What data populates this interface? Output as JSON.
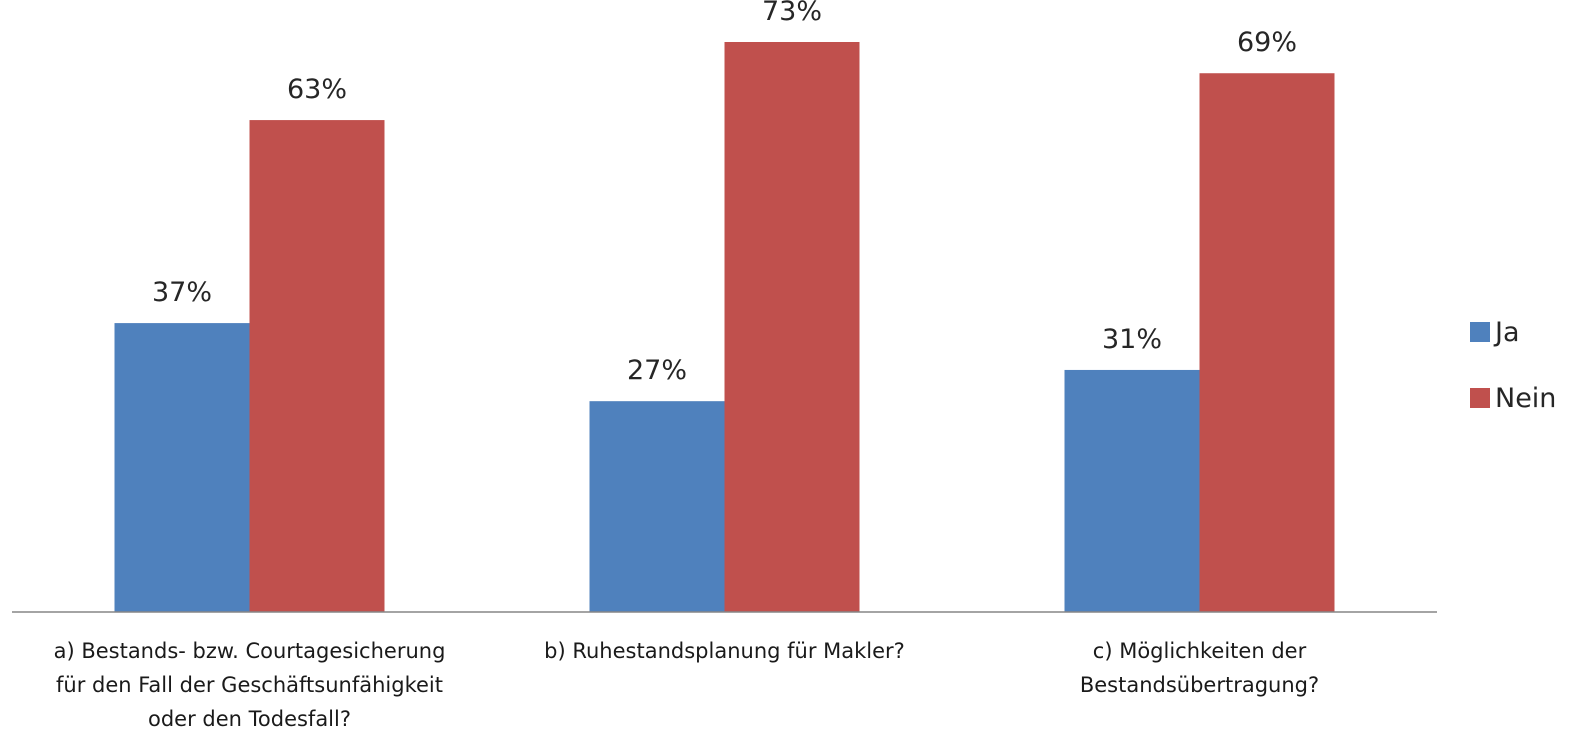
{
  "chart_data": {
    "type": "bar",
    "categories": [
      [
        "a) Bestands- bzw. Courtagesicherung",
        "für den Fall der Geschäftsunfähigkeit",
        "oder den Todesfall?"
      ],
      [
        "b) Ruhestandsplanung für Makler?"
      ],
      [
        "c) Möglichkeiten der",
        "Bestandsübertragung?"
      ]
    ],
    "series": [
      {
        "name": "Ja",
        "color": "#4F81BD",
        "values": [
          37,
          27,
          31
        ],
        "labels": [
          "37%",
          "27%",
          "31%"
        ]
      },
      {
        "name": "Nein",
        "color": "#C0504D",
        "values": [
          63,
          73,
          69
        ],
        "labels": [
          "63%",
          "73%",
          "69%"
        ]
      }
    ],
    "ylim": [
      0,
      80
    ],
    "title": "",
    "xlabel": "",
    "ylabel": "",
    "grid": false,
    "legend_position": "right"
  }
}
